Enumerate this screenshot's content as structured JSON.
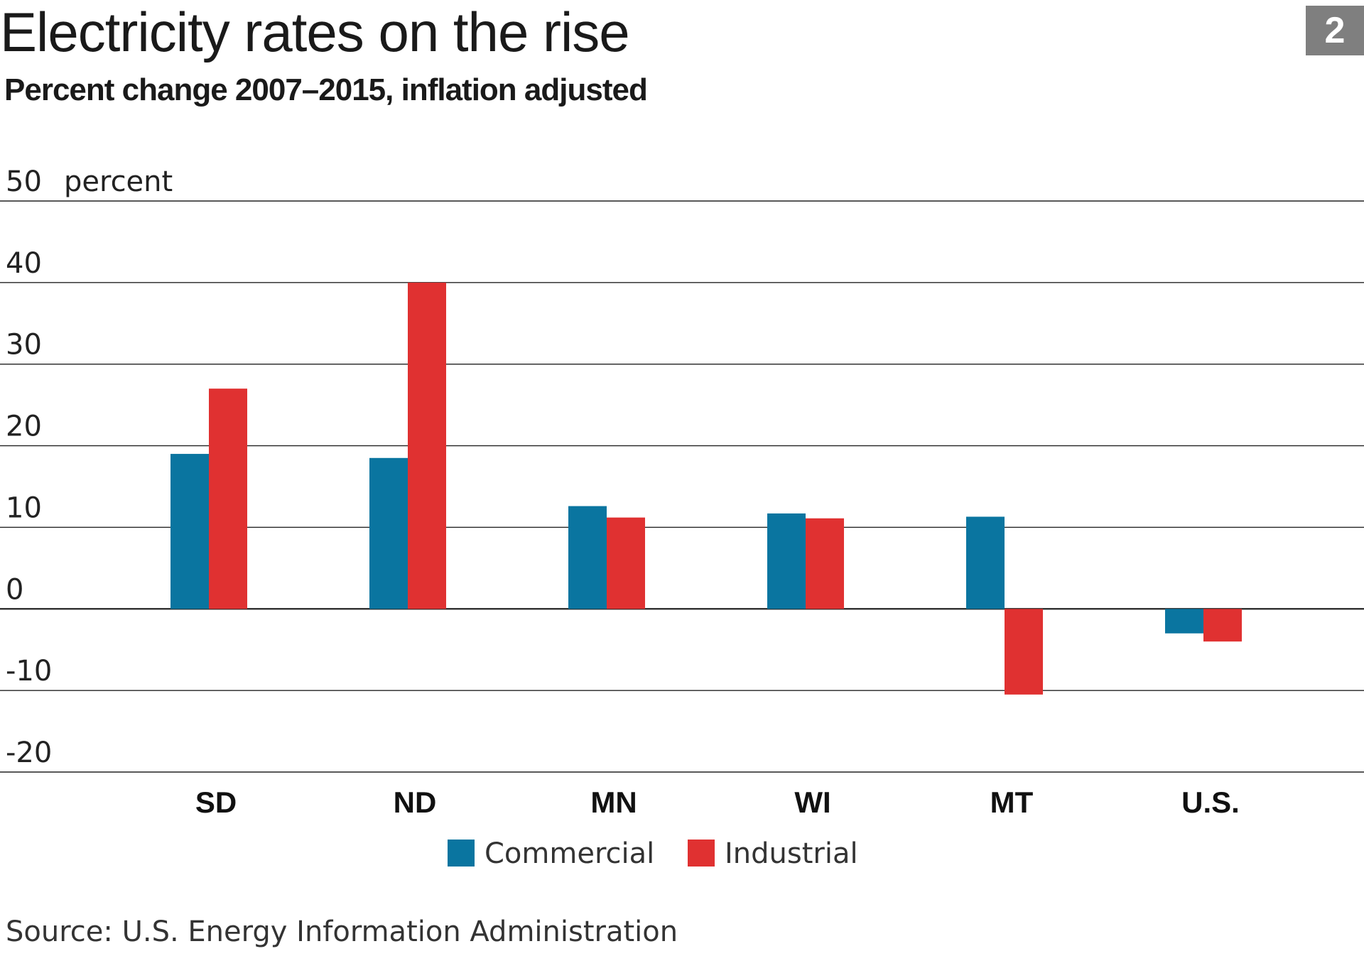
{
  "badge": "2",
  "source": "Source: U.S. Energy Information Administration",
  "colors": {
    "commercial": "#0a75a0",
    "industrial": "#e03131",
    "gridline": "#222222",
    "badge": "#7f7f7f"
  },
  "chart_data": {
    "type": "bar",
    "title": "Electricity rates on the rise",
    "subtitle": "Percent change 2007–2015, inflation adjusted",
    "ylabel": "percent",
    "ylim": [
      -20,
      50
    ],
    "yticks": [
      50,
      40,
      30,
      20,
      10,
      0,
      -10,
      -20
    ],
    "grid": true,
    "legend": "bottom-center",
    "categories": [
      "SD",
      "ND",
      "MN",
      "WI",
      "MT",
      "U.S."
    ],
    "series": [
      {
        "name": "Commercial",
        "values": [
          19,
          18.5,
          12.6,
          11.7,
          11.3,
          -3
        ]
      },
      {
        "name": "Industrial",
        "values": [
          27,
          40,
          11.2,
          11.1,
          -10.5,
          -4
        ]
      }
    ]
  }
}
